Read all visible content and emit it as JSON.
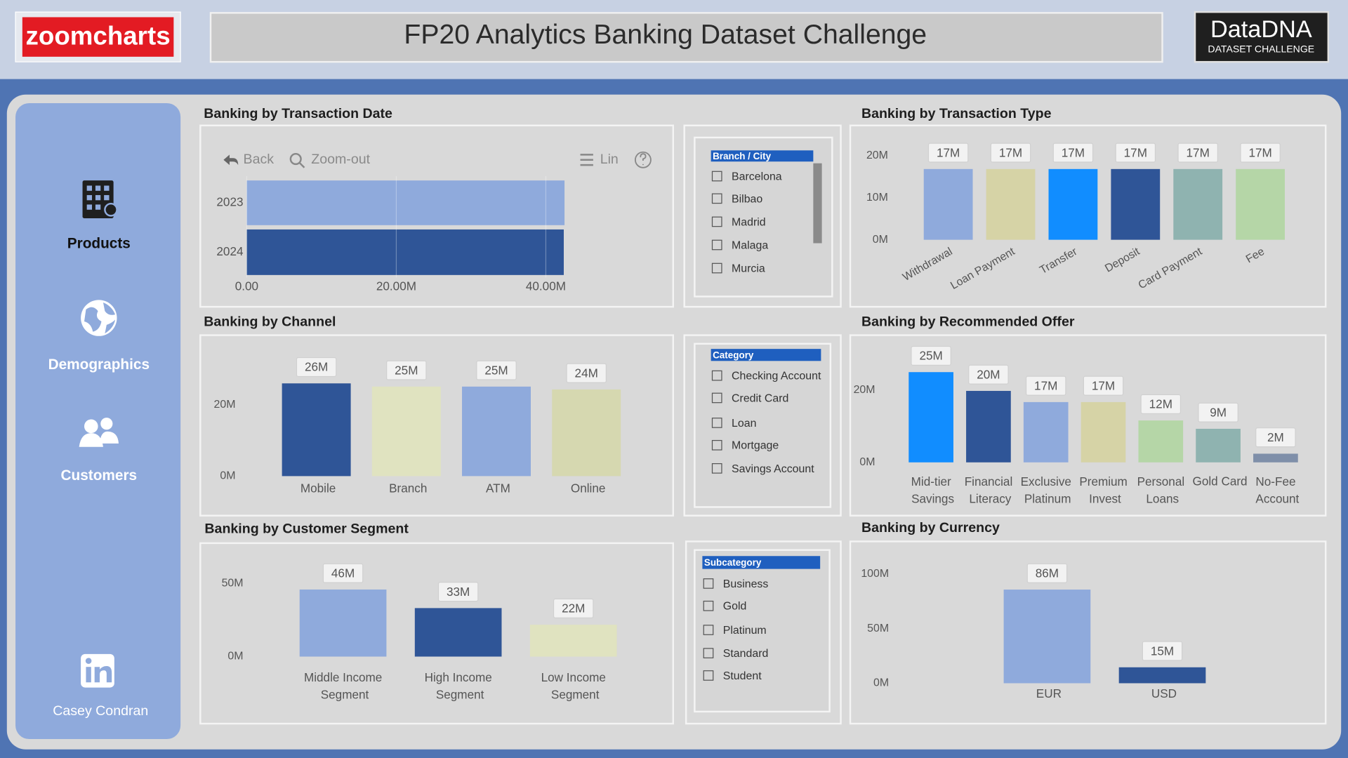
{
  "header": {
    "logo": "zoomcharts",
    "title": "FP20 Analytics Banking Dataset Challenge",
    "brand": "DataDNA",
    "brand_sub": "DATASET CHALLENGE"
  },
  "nav": {
    "items": [
      "Products",
      "Demographics",
      "Customers"
    ],
    "author": "Casey Condran"
  },
  "slicers": [
    {
      "title": "Branch / City",
      "items": [
        "Barcelona",
        "Bilbao",
        "Madrid",
        "Malaga",
        "Murcia"
      ]
    },
    {
      "title": "Category",
      "items": [
        "Checking Account",
        "Credit Card",
        "Loan",
        "Mortgage",
        "Savings Account"
      ]
    },
    {
      "title": "Subcategory",
      "items": [
        "Business",
        "Gold",
        "Platinum",
        "Standard",
        "Student"
      ]
    }
  ],
  "chart_data": [
    {
      "type": "bar",
      "orientation": "horizontal",
      "title": "Banking by Transaction Date",
      "toolbar": [
        "Back",
        "Zoom-out",
        "Lin"
      ],
      "categories": [
        "2023",
        "2024"
      ],
      "values": [
        42500000,
        42400000
      ],
      "colors": [
        "#8faadc",
        "#2f5597"
      ],
      "xlim": [
        0,
        43000000
      ],
      "xticks": [
        {
          "value": 0,
          "label": "0.00"
        },
        {
          "value": 20000000,
          "label": "20.00M"
        },
        {
          "value": 40000000,
          "label": "40.00M"
        }
      ],
      "grid": true
    },
    {
      "type": "bar",
      "title": "Banking by Transaction Type",
      "categories": [
        "Withdrawal",
        "Loan Payment",
        "Transfer",
        "Deposit",
        "Card Payment",
        "Fee"
      ],
      "values": [
        16800000,
        16800000,
        16800000,
        16800000,
        16800000,
        16800000
      ],
      "value_labels": [
        "17M",
        "17M",
        "17M",
        "17M",
        "17M",
        "17M"
      ],
      "colors": [
        "#8faadc",
        "#d6d3a6",
        "#118dff",
        "#2f5597",
        "#8fb3b0",
        "#b5d6a7"
      ],
      "ylim": [
        0,
        22000000
      ],
      "yticks": [
        {
          "value": 0,
          "label": "0M"
        },
        {
          "value": 10000000,
          "label": "10M"
        },
        {
          "value": 20000000,
          "label": "20M"
        }
      ],
      "grid": false
    },
    {
      "type": "bar",
      "title": "Banking by Channel",
      "categories": [
        "Mobile",
        "Branch",
        "ATM",
        "Online"
      ],
      "values": [
        26000000,
        25100000,
        25100000,
        24300000
      ],
      "value_labels": [
        "26M",
        "25M",
        "25M",
        "24M"
      ],
      "colors": [
        "#2f5597",
        "#e0e3c0",
        "#8faadc",
        "#d6d8b0"
      ],
      "ylim": [
        0,
        28000000
      ],
      "yticks": [
        {
          "value": 0,
          "label": "0M"
        },
        {
          "value": 20000000,
          "label": "20M"
        }
      ],
      "grid": false
    },
    {
      "type": "bar",
      "title": "Banking by Recommended Offer",
      "categories": [
        "Mid-tier Savings",
        "Financial Literacy",
        "Exclusive Platinum",
        "Premium Invest",
        "Personal Loans",
        "Gold Card",
        "No-Fee Account"
      ],
      "values": [
        25000000,
        19800000,
        16700000,
        16700000,
        11600000,
        9300000,
        2400000
      ],
      "value_labels": [
        "25M",
        "20M",
        "17M",
        "17M",
        "12M",
        "9M",
        "2M"
      ],
      "colors": [
        "#118dff",
        "#2f5597",
        "#8faadc",
        "#d6d3a6",
        "#b5d6a7",
        "#8fb3b0",
        "#7f8fa9"
      ],
      "ylim": [
        0,
        26000000
      ],
      "yticks": [
        {
          "value": 0,
          "label": "0M"
        },
        {
          "value": 20000000,
          "label": "20M"
        }
      ],
      "grid": false
    },
    {
      "type": "bar",
      "title": "Banking by Customer Segment",
      "categories": [
        "Middle Income Segment",
        "High Income Segment",
        "Low Income Segment"
      ],
      "values": [
        45900000,
        33200000,
        21800000
      ],
      "value_labels": [
        "46M",
        "33M",
        "22M"
      ],
      "colors": [
        "#8faadc",
        "#2f5597",
        "#e0e3c0"
      ],
      "ylim": [
        0,
        55000000
      ],
      "yticks": [
        {
          "value": 0,
          "label": "0M"
        },
        {
          "value": 50000000,
          "label": "50M"
        }
      ],
      "grid": false
    },
    {
      "type": "bar",
      "title": "Banking by Currency",
      "categories": [
        "EUR",
        "USD"
      ],
      "values": [
        85800000,
        14600000
      ],
      "value_labels": [
        "86M",
        "15M"
      ],
      "colors": [
        "#8faadc",
        "#2f5597"
      ],
      "ylim": [
        0,
        105000000
      ],
      "yticks": [
        {
          "value": 0,
          "label": "0M"
        },
        {
          "value": 50000000,
          "label": "50M"
        },
        {
          "value": 100000000,
          "label": "100M"
        }
      ],
      "grid": false
    }
  ]
}
